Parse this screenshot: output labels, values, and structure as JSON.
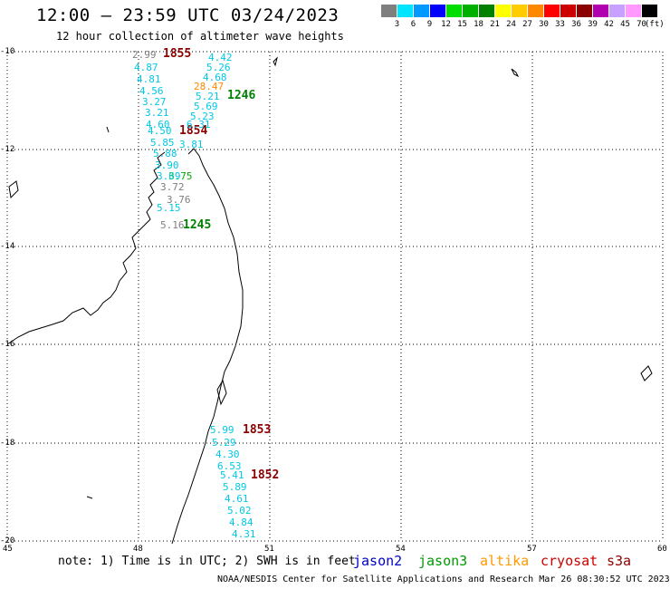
{
  "title": "12:00 – 23:59 UTC 03/24/2023",
  "subtitle": "12 hour collection of altimeter wave heights",
  "scale": {
    "unit": "(ft)",
    "bins": [
      {
        "label": "3",
        "color": "#7f7f7f"
      },
      {
        "label": "6",
        "color": "#00e5ff"
      },
      {
        "label": "9",
        "color": "#0099ff"
      },
      {
        "label": "12",
        "color": "#0000ff"
      },
      {
        "label": "15",
        "color": "#00dd00"
      },
      {
        "label": "18",
        "color": "#00b000"
      },
      {
        "label": "21",
        "color": "#008000"
      },
      {
        "label": "24",
        "color": "#ffff00"
      },
      {
        "label": "27",
        "color": "#ffcc00"
      },
      {
        "label": "30",
        "color": "#ff8800"
      },
      {
        "label": "33",
        "color": "#ff0000"
      },
      {
        "label": "36",
        "color": "#cc0000"
      },
      {
        "label": "39",
        "color": "#8b0000"
      },
      {
        "label": "42",
        "color": "#b000b0"
      },
      {
        "label": "45",
        "color": "#c8a0ff"
      },
      {
        "label": "70",
        "color": "#ff99ff"
      },
      {
        "label": "",
        "color": "#000000"
      }
    ]
  },
  "axes": {
    "lat_labels": [
      "-10",
      "-12",
      "-14",
      "-16",
      "-18",
      "-20"
    ],
    "lon_labels": [
      "45",
      "48",
      "51",
      "54",
      "57",
      "60"
    ]
  },
  "tracks": [
    {
      "time": "1855",
      "color": "#8b0000"
    },
    {
      "time": "1246",
      "color": "#008000"
    },
    {
      "time": "1854",
      "color": "#8b0000"
    },
    {
      "time": "1245",
      "color": "#008000"
    },
    {
      "time": "1853",
      "color": "#8b0000"
    },
    {
      "time": "1852",
      "color": "#8b0000"
    }
  ],
  "wave_heights": [
    {
      "v": "2.99",
      "c": "#7f7f7f"
    },
    {
      "v": "4.42",
      "c": "#00c8e6"
    },
    {
      "v": "4.87",
      "c": "#00c8e6"
    },
    {
      "v": "5.26",
      "c": "#00c8e6"
    },
    {
      "v": "4.81",
      "c": "#00c8e6"
    },
    {
      "v": "4.68",
      "c": "#00c8e6"
    },
    {
      "v": "28.47",
      "c": "#ff8800"
    },
    {
      "v": "4.56",
      "c": "#00c8e6"
    },
    {
      "v": "5.21",
      "c": "#00c8e6"
    },
    {
      "v": "3.27",
      "c": "#00c8e6"
    },
    {
      "v": "5.69",
      "c": "#00c8e6"
    },
    {
      "v": "3.21",
      "c": "#00c8e6"
    },
    {
      "v": "5.23",
      "c": "#00c8e6"
    },
    {
      "v": "4.60",
      "c": "#00c8e6"
    },
    {
      "v": "6.31",
      "c": "#00c8e6"
    },
    {
      "v": "4.50",
      "c": "#00c8e6"
    },
    {
      "v": "5.85",
      "c": "#00c8e6"
    },
    {
      "v": "3.81",
      "c": "#00c8e6"
    },
    {
      "v": "5.88",
      "c": "#00c8e6"
    },
    {
      "v": "3.90",
      "c": "#00c8e6"
    },
    {
      "v": "3.75",
      "c": "#00b000"
    },
    {
      "v": "3.69",
      "c": "#00c8e6"
    },
    {
      "v": "3.72",
      "c": "#7f7f7f"
    },
    {
      "v": "3.76",
      "c": "#7f7f7f"
    },
    {
      "v": "5.15",
      "c": "#00c8e6"
    },
    {
      "v": "5.16",
      "c": "#7f7f7f"
    },
    {
      "v": "5.99",
      "c": "#00c8e6"
    },
    {
      "v": "5.29",
      "c": "#00c8e6"
    },
    {
      "v": "4.30",
      "c": "#00c8e6"
    },
    {
      "v": "6.53",
      "c": "#00c8e6"
    },
    {
      "v": "5.41",
      "c": "#00c8e6"
    },
    {
      "v": "5.89",
      "c": "#00c8e6"
    },
    {
      "v": "4.61",
      "c": "#00c8e6"
    },
    {
      "v": "5.02",
      "c": "#00c8e6"
    },
    {
      "v": "4.84",
      "c": "#00c8e6"
    },
    {
      "v": "4.31",
      "c": "#00c8e6"
    }
  ],
  "footer": {
    "note": "note:  1) Time is in UTC; 2) SWH is in feet",
    "satellites": [
      {
        "name": "jason2",
        "color": "#0000cc"
      },
      {
        "name": "jason3",
        "color": "#009900"
      },
      {
        "name": "altika",
        "color": "#ff9900"
      },
      {
        "name": "cryosat",
        "color": "#cc0000"
      },
      {
        "name": "s3a",
        "color": "#8b0000"
      }
    ],
    "credit": "NOAA/NESDIS Center for Satellite Applications and Research    Mar 26 08:30:52 UTC 2023"
  }
}
